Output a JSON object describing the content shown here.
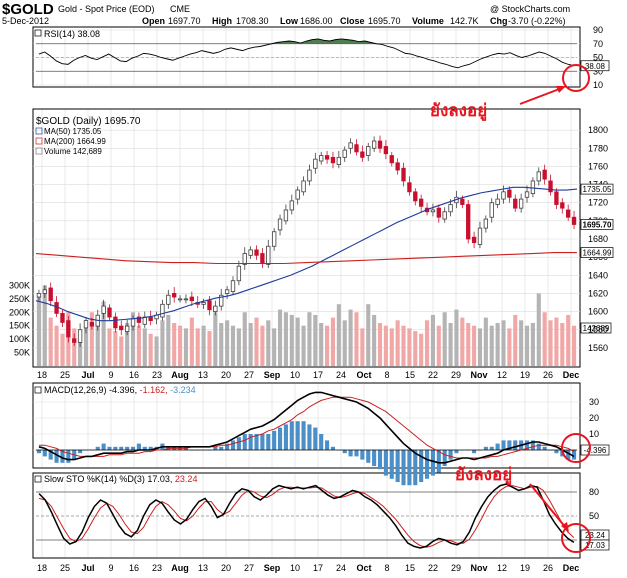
{
  "header": {
    "symbol": "$GOLD",
    "name": "Gold - Spot Price (EOD)",
    "exchange": "CME",
    "date": "5-Dec-2012",
    "open_label": "Open",
    "open": "1697.70",
    "high_label": "High",
    "high": "1708.30",
    "low_label": "Low",
    "low": "1686.00",
    "close_label": "Close",
    "close": "1695.70",
    "volume_label": "Volume",
    "volume": "142.7K",
    "chg_label": "Chg",
    "chg": "-3.70 (-0.22%)",
    "watermark": "@ StockCharts.com"
  },
  "colors": {
    "up": "#3f3f3f",
    "down": "#c8102e",
    "ma50": "#1f3b9b",
    "ma200": "#cc1f1f",
    "vol_up": "#b4b4b4",
    "vol_down": "#f2a7a7",
    "rsi_fill": "#4f7f4f",
    "macd_hist": "#4b8fc8",
    "annotation": "#e8141e"
  },
  "chart_data": [
    {
      "type": "line",
      "panel": "rsi",
      "legend": "RSI(14) 38.08",
      "last_value_label": "38.08",
      "ylim": [
        10,
        90
      ],
      "yticks": [
        90,
        70,
        50,
        30,
        10
      ],
      "overbought": 70,
      "oversold": 30,
      "values": [
        55,
        58,
        52,
        45,
        41,
        40,
        46,
        50,
        53,
        49,
        47,
        51,
        55,
        50,
        45,
        44,
        49,
        52,
        56,
        55,
        53,
        50,
        48,
        46,
        49,
        52,
        55,
        57,
        60,
        58,
        56,
        58,
        62,
        64,
        62,
        60,
        63,
        65,
        66,
        68,
        70,
        72,
        73,
        74,
        73,
        71,
        74,
        76,
        77,
        75,
        74,
        76,
        77,
        76,
        75,
        73,
        74,
        72,
        70,
        69,
        66,
        64,
        60,
        56,
        55,
        52,
        50,
        47,
        45,
        42,
        40,
        37,
        35,
        38,
        40,
        44,
        48,
        51,
        54,
        56,
        55,
        57,
        53,
        50,
        52,
        55,
        58,
        56,
        52,
        48,
        43,
        40,
        38
      ]
    },
    {
      "type": "candlestick",
      "panel": "price",
      "legend": "$GOLD (Daily) 1695.70",
      "ylim": [
        1540,
        1820
      ],
      "yticks": [
        1800,
        1780,
        1760,
        1740,
        1720,
        1700,
        1680,
        1660,
        1640,
        1620,
        1600,
        1580,
        1560
      ],
      "last_value_label": "1695.70",
      "close": [
        1620,
        1624,
        1612,
        1598,
        1588,
        1572,
        1566,
        1580,
        1590,
        1584,
        1596,
        1606,
        1594,
        1582,
        1580,
        1584,
        1592,
        1588,
        1594,
        1590,
        1596,
        1608,
        1618,
        1616,
        1614,
        1614,
        1612,
        1608,
        1610,
        1602,
        1606,
        1618,
        1624,
        1634,
        1650,
        1664,
        1668,
        1662,
        1654,
        1672,
        1688,
        1702,
        1712,
        1722,
        1734,
        1744,
        1756,
        1768,
        1772,
        1768,
        1764,
        1770,
        1778,
        1786,
        1776,
        1770,
        1782,
        1788,
        1780,
        1774,
        1764,
        1756,
        1744,
        1732,
        1722,
        1716,
        1710,
        1712,
        1704,
        1710,
        1718,
        1726,
        1718,
        1680,
        1676,
        1692,
        1702,
        1720,
        1724,
        1732,
        1726,
        1714,
        1724,
        1732,
        1744,
        1754,
        1746,
        1732,
        1718,
        1714,
        1704,
        1696
      ],
      "series": [
        {
          "name": "MA(50) 1735.05",
          "last_value_label": "1735.05",
          "values": [
            1612,
            1609,
            1605,
            1600,
            1596,
            1592,
            1590,
            1590,
            1591,
            1592,
            1593,
            1595,
            1598,
            1601,
            1605,
            1609,
            1612,
            1615,
            1617,
            1620,
            1624,
            1628,
            1632,
            1636,
            1640,
            1645,
            1650,
            1656,
            1662,
            1668,
            1674,
            1680,
            1686,
            1692,
            1698,
            1703,
            1708,
            1713,
            1717,
            1721,
            1725,
            1728,
            1731,
            1733,
            1735,
            1737,
            1737,
            1736,
            1735,
            1734,
            1734,
            1735
          ]
        },
        {
          "name": "MA(200) 1664.99",
          "last_value_label": "1664.99",
          "values": [
            1664,
            1662,
            1660,
            1658,
            1656,
            1655,
            1654,
            1654,
            1653,
            1653,
            1653,
            1653,
            1654,
            1655,
            1656,
            1657,
            1658,
            1659,
            1660,
            1661,
            1662,
            1663,
            1664,
            1665,
            1665
          ]
        }
      ]
    },
    {
      "type": "bar",
      "panel": "volume",
      "legend": "Volume 142,689",
      "last_value_label": "142689",
      "yticks": [
        "300K",
        "250K",
        "200K",
        "150K",
        "100K",
        "50K"
      ],
      "ylim": [
        0,
        320
      ],
      "values": [
        260,
        300,
        180,
        150,
        120,
        200,
        140,
        90,
        170,
        200,
        160,
        240,
        140,
        130,
        110,
        160,
        200,
        150,
        140,
        120,
        110,
        170,
        190,
        160,
        150,
        140,
        180,
        140,
        150,
        130,
        200,
        160,
        170,
        150,
        140,
        200,
        160,
        180,
        150,
        170,
        140,
        210,
        200,
        190,
        180,
        150,
        200,
        190,
        160,
        150,
        180,
        230,
        170,
        210,
        200,
        140,
        230,
        190,
        160,
        150,
        140,
        170,
        150,
        140,
        130,
        120,
        170,
        190,
        150,
        200,
        160,
        210,
        180,
        160,
        150,
        140,
        180,
        150,
        160,
        170,
        140,
        190,
        170,
        150,
        160,
        270,
        200,
        170,
        180,
        160,
        190,
        150
      ]
    },
    {
      "type": "line",
      "panel": "macd",
      "legend_name": "MACD(12,26,9)",
      "legend_values": [
        "-4.396,",
        "-1.162,",
        "-3.234"
      ],
      "last_value_label": "-4.396",
      "ylim": [
        -10,
        40
      ],
      "yticks": [
        30,
        20,
        10,
        0
      ],
      "macd": [
        2,
        1,
        -1,
        -3,
        -5,
        -6,
        -6,
        -5,
        -4,
        -4,
        -3,
        -2,
        -2,
        -2,
        -2,
        -1,
        -1,
        0,
        0,
        0,
        1,
        2,
        2,
        2,
        2,
        2,
        2,
        2,
        2,
        2,
        3,
        4,
        5,
        7,
        9,
        11,
        13,
        14,
        15,
        17,
        19,
        22,
        25,
        28,
        31,
        33,
        35,
        36,
        36,
        35,
        34,
        33,
        32,
        31,
        30,
        28,
        26,
        23,
        20,
        16,
        12,
        8,
        4,
        1,
        -2,
        -4,
        -6,
        -7,
        -8,
        -8,
        -7,
        -6,
        -5,
        -5,
        -6,
        -5,
        -4,
        -3,
        -2,
        0,
        1,
        2,
        3,
        4,
        5,
        5,
        4,
        3,
        2,
        0,
        -2,
        -4
      ],
      "signal": [
        3,
        3,
        2,
        1,
        -1,
        -2,
        -3,
        -4,
        -4,
        -4,
        -4,
        -4,
        -3,
        -3,
        -3,
        -2,
        -2,
        -2,
        -1,
        -1,
        0,
        0,
        1,
        1,
        1,
        1,
        2,
        2,
        2,
        2,
        2,
        3,
        3,
        4,
        5,
        6,
        8,
        9,
        10,
        12,
        13,
        15,
        17,
        19,
        22,
        24,
        27,
        29,
        31,
        32,
        33,
        33,
        33,
        33,
        32,
        31,
        30,
        28,
        26,
        24,
        21,
        18,
        15,
        12,
        9,
        6,
        3,
        1,
        -1,
        -3,
        -4,
        -5,
        -5,
        -5,
        -5,
        -5,
        -5,
        -4,
        -4,
        -3,
        -2,
        -1,
        0,
        1,
        2,
        3,
        3,
        3,
        3,
        2,
        1,
        -1
      ]
    },
    {
      "type": "line",
      "panel": "sto",
      "legend_name": "Slow STO %K(14) %D(3)",
      "legend_values": [
        "17.03,",
        "23.24"
      ],
      "last_value_labels": [
        "23.24",
        "17.03"
      ],
      "ylim": [
        0,
        100
      ],
      "yticks": [
        80,
        50,
        20
      ],
      "k": [
        78,
        70,
        55,
        38,
        22,
        15,
        18,
        30,
        48,
        62,
        70,
        66,
        52,
        38,
        28,
        24,
        32,
        50,
        64,
        70,
        66,
        55,
        45,
        40,
        46,
        58,
        68,
        72,
        62,
        48,
        52,
        66,
        78,
        84,
        82,
        74,
        70,
        76,
        84,
        88,
        86,
        84,
        86,
        84,
        86,
        88,
        82,
        76,
        72,
        74,
        78,
        82,
        80,
        74,
        70,
        64,
        56,
        48,
        38,
        26,
        16,
        12,
        10,
        12,
        18,
        22,
        20,
        16,
        14,
        18,
        30,
        48,
        62,
        74,
        82,
        88,
        90,
        86,
        82,
        84,
        88,
        86,
        70,
        52,
        40,
        30,
        22,
        17
      ],
      "d": [
        72,
        70,
        62,
        48,
        34,
        22,
        18,
        22,
        34,
        48,
        60,
        66,
        62,
        52,
        40,
        30,
        28,
        36,
        50,
        62,
        68,
        64,
        56,
        47,
        44,
        50,
        60,
        68,
        68,
        58,
        52,
        56,
        66,
        76,
        82,
        80,
        75,
        73,
        77,
        83,
        86,
        86,
        85,
        85,
        85,
        86,
        85,
        80,
        75,
        73,
        75,
        78,
        80,
        78,
        73,
        68,
        62,
        54,
        46,
        36,
        26,
        18,
        13,
        11,
        13,
        17,
        20,
        19,
        16,
        16,
        21,
        33,
        47,
        62,
        74,
        82,
        87,
        88,
        86,
        84,
        86,
        87,
        82,
        70,
        56,
        42,
        30,
        23
      ]
    }
  ],
  "x_labels_price": [
    "18",
    "25",
    "Jul",
    "9",
    "16",
    "23",
    "Aug",
    "13",
    "20",
    "27",
    "Sep",
    "10",
    "17",
    "24",
    "Oct",
    "8",
    "15",
    "22",
    "29",
    "Nov",
    "12",
    "19",
    "26",
    "Dec"
  ],
  "annotations": [
    {
      "text": "ยังลงอยู่",
      "target": "rsi"
    },
    {
      "text": "ยังลงอยู่",
      "target": "sto"
    }
  ]
}
